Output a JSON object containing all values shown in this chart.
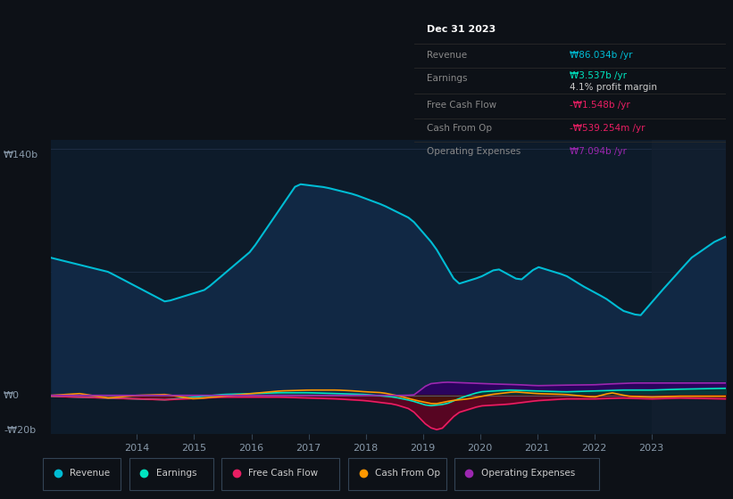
{
  "bg_color": "#0d1117",
  "plot_bg_color": "#0d1b2a",
  "ylabel_top": "₩140b",
  "ylabel_zero": "₩0",
  "ylabel_neg": "-₩20b",
  "x_tick_labels": [
    "2014",
    "2015",
    "2016",
    "2017",
    "2018",
    "2019",
    "2020",
    "2021",
    "2022",
    "2023"
  ],
  "revenue_color": "#00bcd4",
  "revenue_fill": "#1a3a5c",
  "earnings_color": "#00e5c0",
  "free_cf_color": "#e91e63",
  "cash_op_color": "#ff9800",
  "op_exp_color": "#9c27b0",
  "info_box": {
    "date": "Dec 31 2023",
    "revenue_label": "Revenue",
    "revenue_value": "₩86.034b /yr",
    "revenue_color": "#00bcd4",
    "earnings_label": "Earnings",
    "earnings_value": "₩3.537b /yr",
    "earnings_color": "#00e5c0",
    "margin_text": "4.1% profit margin",
    "margin_color": "#cccccc",
    "fcf_label": "Free Cash Flow",
    "fcf_value": "-₩1.548b /yr",
    "fcf_color": "#e91e63",
    "cop_label": "Cash From Op",
    "cop_value": "-₩539.254m /yr",
    "cop_color": "#e91e63",
    "opex_label": "Operating Expenses",
    "opex_value": "₩7.094b /yr",
    "opex_color": "#9c27b0"
  },
  "legend_items": [
    {
      "label": "Revenue",
      "color": "#00bcd4"
    },
    {
      "label": "Earnings",
      "color": "#00e5c0"
    },
    {
      "label": "Free Cash Flow",
      "color": "#e91e63"
    },
    {
      "label": "Cash From Op",
      "color": "#ff9800"
    },
    {
      "label": "Operating Expenses",
      "color": "#9c27b0"
    }
  ]
}
